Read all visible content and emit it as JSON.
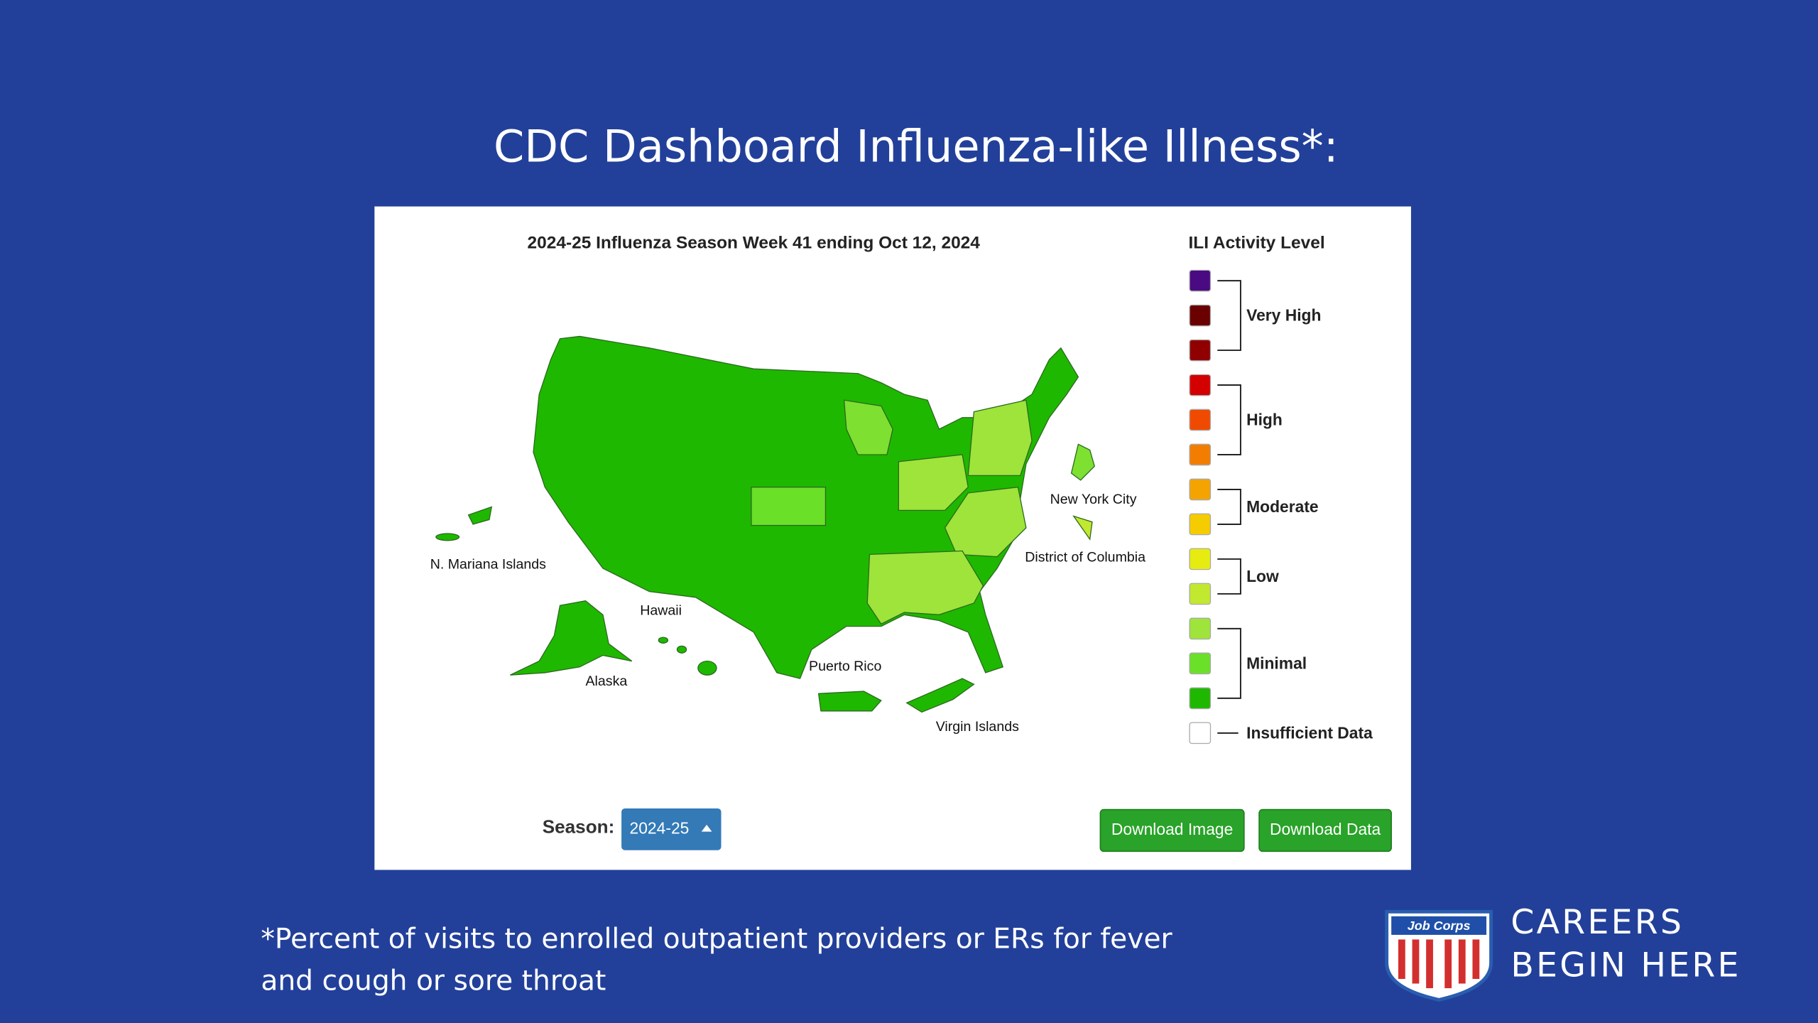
{
  "slide": {
    "title": "CDC Dashboard Influenza-like Illness*:",
    "footnote": [
      "*Percent of visits to enrolled outpatient providers or ERs for fever",
      "and cough or sore throat"
    ]
  },
  "dashboard": {
    "title": "2024-25 Influenza Season Week 41 ending Oct 12, 2024",
    "map_labels": [
      "N. Mariana Islands",
      "Hawaii",
      "Alaska",
      "Puerto Rico",
      "Virgin Islands",
      "New York City",
      "District of Columbia"
    ],
    "legend": {
      "title": "ILI Activity Level",
      "levels": [
        {
          "label": "Very High",
          "colors": [
            "#4a0a82",
            "#6a0000",
            "#900000"
          ]
        },
        {
          "label": "High",
          "colors": [
            "#d40000",
            "#f04a00",
            "#f27d00"
          ]
        },
        {
          "label": "Moderate",
          "colors": [
            "#f5a300",
            "#f5cc00"
          ]
        },
        {
          "label": "Low",
          "colors": [
            "#e6ec10",
            "#c2e830"
          ]
        },
        {
          "label": "Minimal",
          "colors": [
            "#9ee43a",
            "#6ae028",
            "#1fb800"
          ]
        },
        {
          "label": "Insufficient Data",
          "colors": [
            "#ffffff"
          ]
        }
      ]
    },
    "season_label": "Season:",
    "season_value": "2024-25",
    "buttons": [
      "Download Image",
      "Download Data"
    ]
  },
  "logo": {
    "badge": "Job Corps",
    "tagline": [
      "CAREERS",
      "BEGIN HERE"
    ]
  }
}
